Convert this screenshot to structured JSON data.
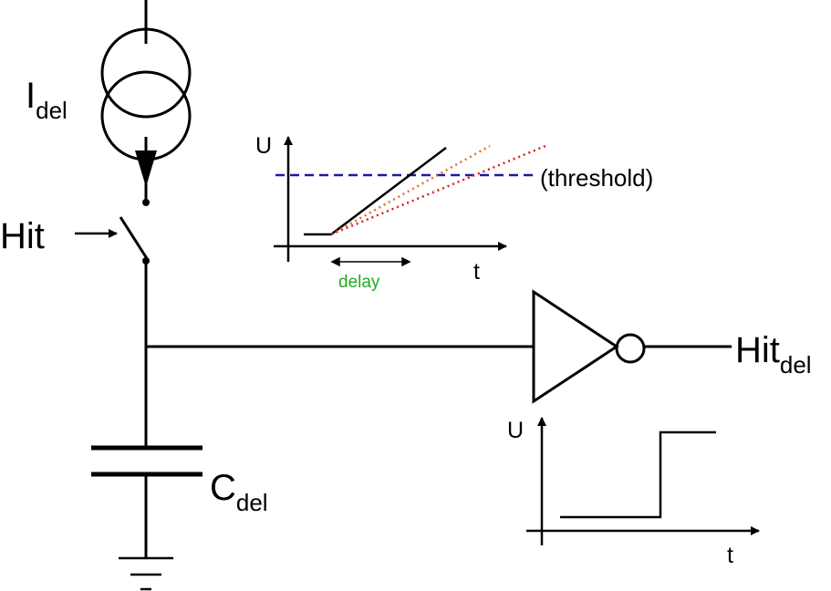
{
  "labels": {
    "current_source": {
      "main": "I",
      "sub": "del"
    },
    "hit_input": "Hit",
    "capacitor": {
      "main": "C",
      "sub": "del"
    },
    "output": {
      "main": "Hit",
      "sub": "del"
    }
  },
  "ramp_plot": {
    "y_axis": "U",
    "x_axis": "t",
    "threshold_label": "(threshold)",
    "delay_label": "delay"
  },
  "step_plot": {
    "y_axis": "U",
    "x_axis": "t"
  },
  "colors": {
    "wire": "#000000",
    "threshold": "#1a1aa6",
    "ramp_orange": "#e07020",
    "ramp_red": "#d42020",
    "delay": "#22aa22"
  }
}
